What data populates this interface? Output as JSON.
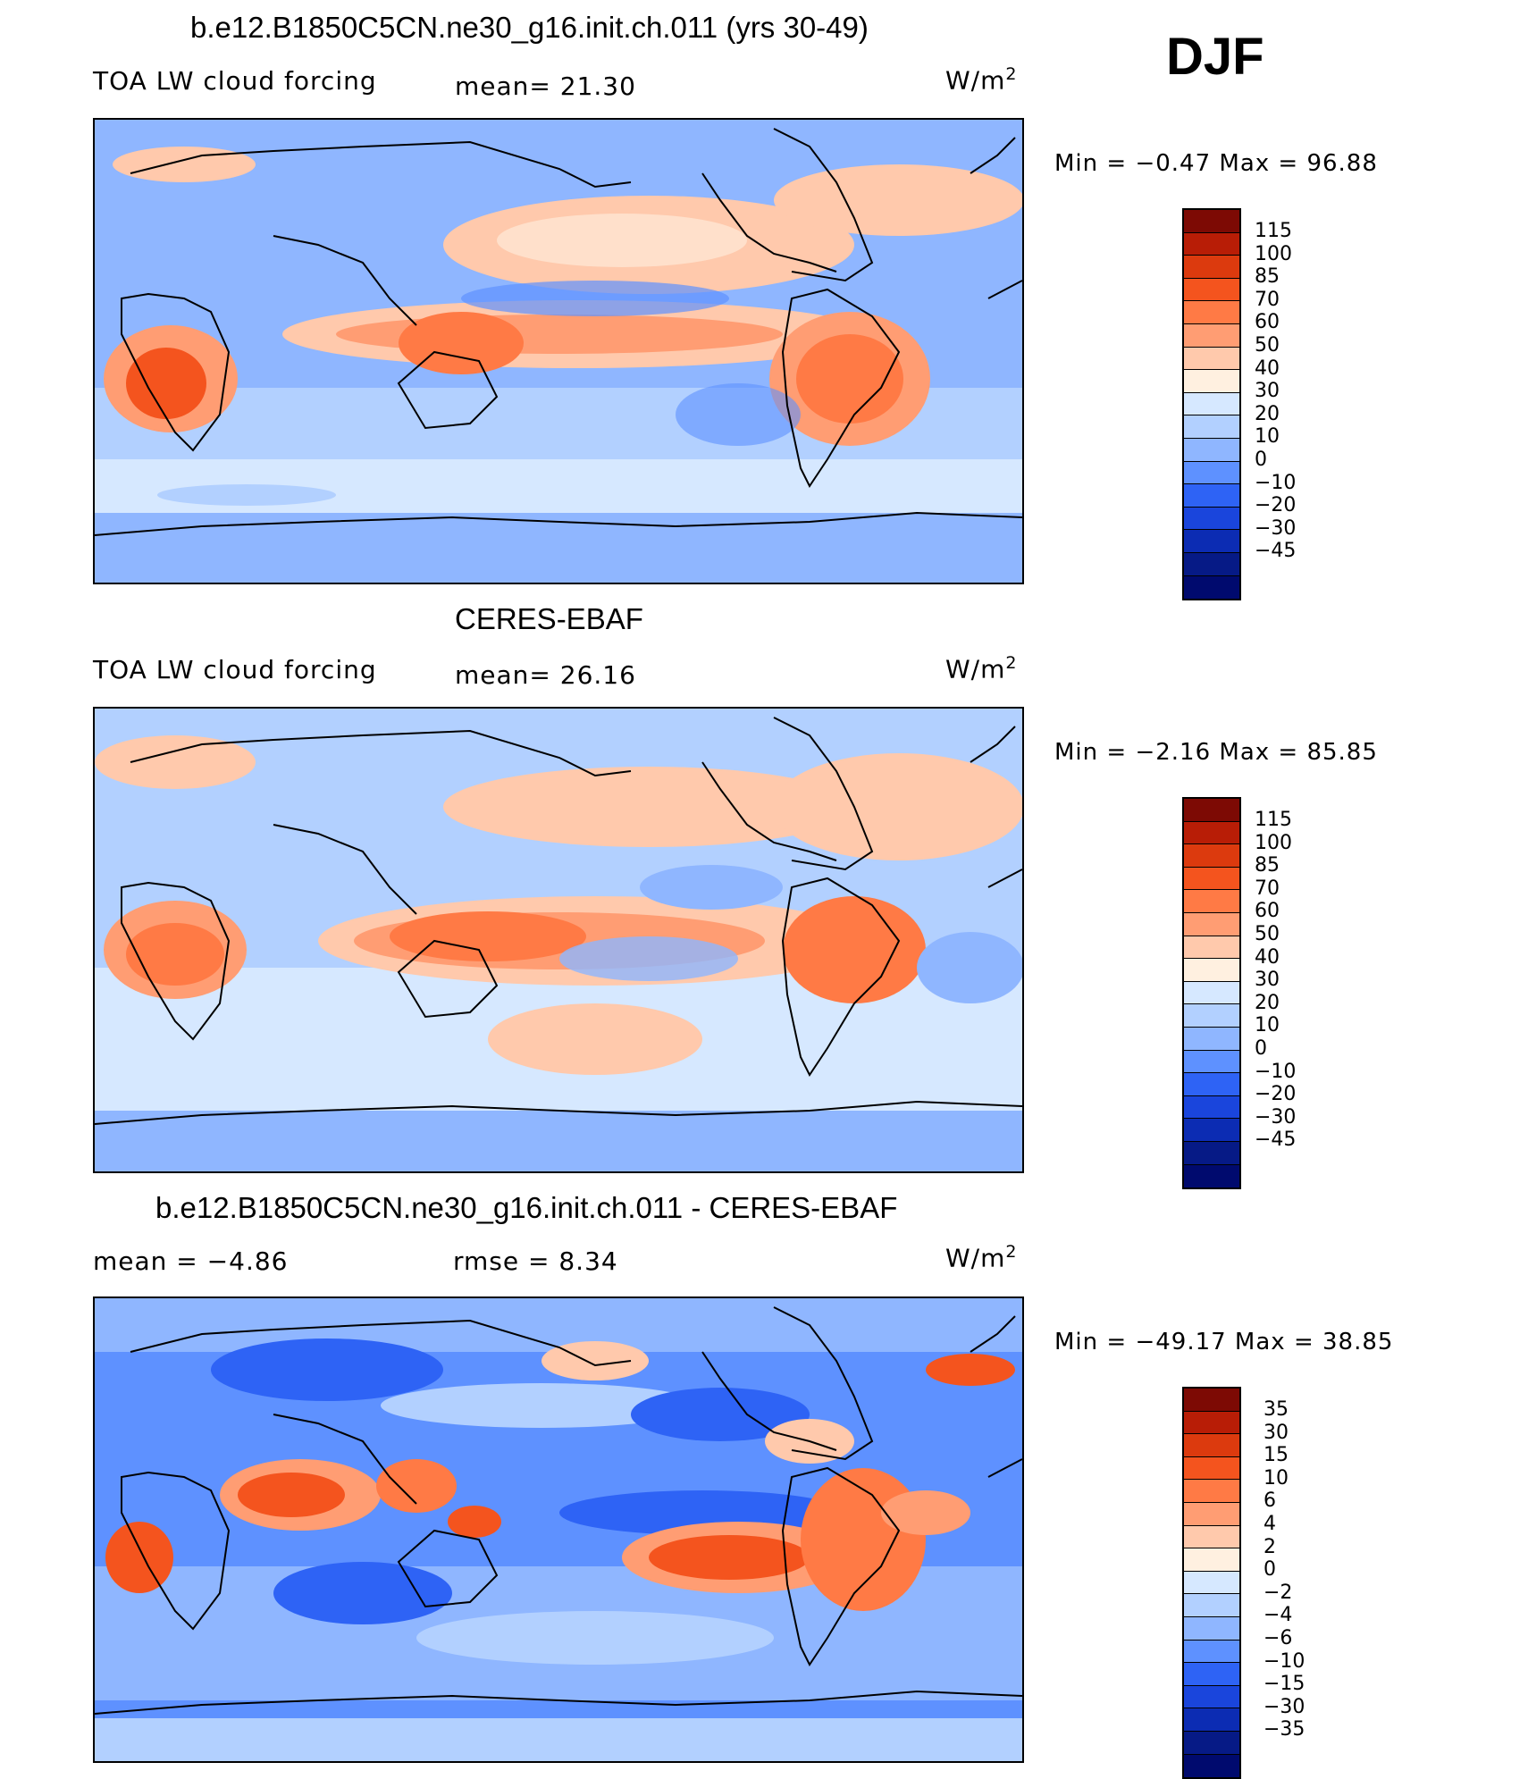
{
  "season": "DJF",
  "units_base": "W/m",
  "units_exp": "2",
  "panels": [
    {
      "title": "b.e12.B1850C5CN.ne30_g16.init.ch.011 (yrs 30-49)",
      "left_label": "TOA LW cloud forcing",
      "mid_label": "mean=  21.30",
      "stats": "Min  =   −0.47  Max  =    96.88",
      "levels": [
        "115",
        "100",
        "85",
        "70",
        "60",
        "50",
        "40",
        "30",
        "20",
        "10",
        "0",
        "−10",
        "−20",
        "−30",
        "−45"
      ],
      "colors": [
        "#7d0a04",
        "#b81d06",
        "#dc3a0e",
        "#f4541e",
        "#ff7a45",
        "#ff9d73",
        "#ffc9ac",
        "#fff0e0",
        "#d6e8ff",
        "#b2d0ff",
        "#8fb6ff",
        "#5e91ff",
        "#2e63f5",
        "#1a45dc",
        "#0c2cb3",
        "#061a86",
        "#000a6e"
      ]
    },
    {
      "title": "CERES-EBAF",
      "left_label": "TOA LW cloud forcing",
      "mid_label": "mean=  26.16",
      "stats": "Min  =   −2.16  Max  =    85.85",
      "levels": [
        "115",
        "100",
        "85",
        "70",
        "60",
        "50",
        "40",
        "30",
        "20",
        "10",
        "0",
        "−10",
        "−20",
        "−30",
        "−45"
      ],
      "colors": [
        "#7d0a04",
        "#b81d06",
        "#dc3a0e",
        "#f4541e",
        "#ff7a45",
        "#ff9d73",
        "#ffc9ac",
        "#fff0e0",
        "#d6e8ff",
        "#b2d0ff",
        "#8fb6ff",
        "#5e91ff",
        "#2e63f5",
        "#1a45dc",
        "#0c2cb3",
        "#061a86",
        "#000a6e"
      ]
    },
    {
      "title": "b.e12.B1850C5CN.ne30_g16.init.ch.011 - CERES-EBAF",
      "left_label": "mean  =   −4.86",
      "mid_label": "rmse  =    8.34",
      "stats": "Min  = −49.17  Max  =    38.85",
      "levels": [
        "35",
        "30",
        "15",
        "10",
        "6",
        "4",
        "2",
        "0",
        "−2",
        "−4",
        "−6",
        "−10",
        "−15",
        "−30",
        "−35"
      ],
      "colors": [
        "#7d0a04",
        "#b81d06",
        "#dc3a0e",
        "#f4541e",
        "#ff7a45",
        "#ff9d73",
        "#ffc9ac",
        "#fff0e0",
        "#d6e8ff",
        "#b2d0ff",
        "#8fb6ff",
        "#5e91ff",
        "#2e63f5",
        "#1a45dc",
        "#0c2cb3",
        "#061a86",
        "#000a6e"
      ]
    }
  ]
}
